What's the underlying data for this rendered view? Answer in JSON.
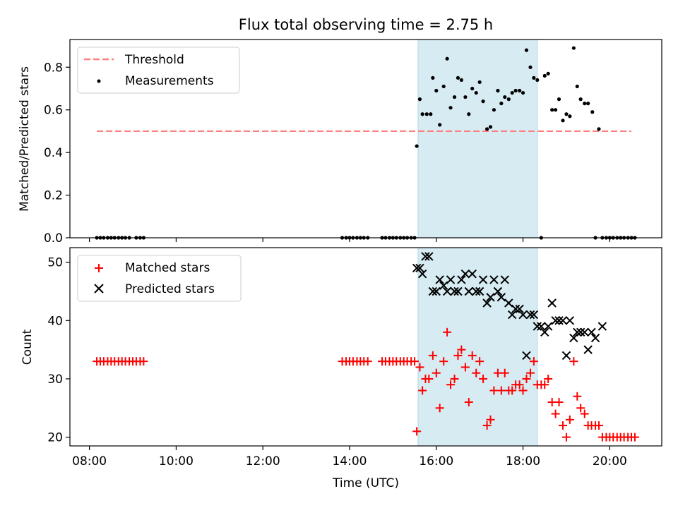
{
  "figure": {
    "title": "Flux total observing time = 2.75 h",
    "xlabel": "Time (UTC)"
  },
  "colors": {
    "span_fill": "#add8e6",
    "threshold": "#ff7f7f",
    "measurements": "#000000",
    "matched": "#ff0000",
    "predicted": "#000000"
  },
  "chart_data": [
    {
      "type": "scatter",
      "panel": "top",
      "ylabel": "Matched/Predicted stars",
      "ylim": [
        0,
        0.93
      ],
      "yticks": [
        0.0,
        0.2,
        0.4,
        0.6,
        0.8
      ],
      "ytick_labels": [
        "0.0",
        "0.2",
        "0.4",
        "0.6",
        "0.8"
      ],
      "x_unit": "hours (UTC)",
      "xlim": [
        7.55,
        21.2
      ],
      "xticks": [
        8,
        10,
        12,
        14,
        16,
        18,
        20
      ],
      "xtick_labels": [
        "08:00",
        "10:00",
        "12:00",
        "14:00",
        "16:00",
        "18:00",
        "20:00"
      ],
      "shaded_span": [
        15.58,
        18.33
      ],
      "grid": false,
      "legend_position": "top-left",
      "legend": [
        "Threshold",
        "Measurements"
      ],
      "threshold": {
        "name": "Threshold",
        "y": 0.5,
        "x_range": [
          8.17,
          20.5
        ],
        "style": "dashed"
      },
      "series": [
        {
          "name": "Measurements",
          "marker": "dot",
          "points": [
            [
              8.17,
              0
            ],
            [
              8.25,
              0
            ],
            [
              8.33,
              0
            ],
            [
              8.42,
              0
            ],
            [
              8.5,
              0
            ],
            [
              8.58,
              0
            ],
            [
              8.67,
              0
            ],
            [
              8.75,
              0
            ],
            [
              8.83,
              0
            ],
            [
              8.92,
              0
            ],
            [
              9.08,
              0
            ],
            [
              9.17,
              0
            ],
            [
              9.25,
              0
            ],
            [
              13.83,
              0
            ],
            [
              13.92,
              0
            ],
            [
              14.0,
              0
            ],
            [
              14.08,
              0
            ],
            [
              14.17,
              0
            ],
            [
              14.25,
              0
            ],
            [
              14.33,
              0
            ],
            [
              14.42,
              0
            ],
            [
              14.75,
              0
            ],
            [
              14.83,
              0
            ],
            [
              14.92,
              0
            ],
            [
              15.0,
              0
            ],
            [
              15.08,
              0
            ],
            [
              15.17,
              0
            ],
            [
              15.25,
              0
            ],
            [
              15.33,
              0
            ],
            [
              15.42,
              0
            ],
            [
              15.5,
              0
            ],
            [
              15.55,
              0.43
            ],
            [
              15.62,
              0.65
            ],
            [
              15.68,
              0.58
            ],
            [
              15.78,
              0.58
            ],
            [
              15.87,
              0.58
            ],
            [
              15.92,
              0.75
            ],
            [
              16.0,
              0.69
            ],
            [
              16.08,
              0.53
            ],
            [
              16.17,
              0.71
            ],
            [
              16.25,
              0.84
            ],
            [
              16.33,
              0.61
            ],
            [
              16.42,
              0.66
            ],
            [
              16.5,
              0.75
            ],
            [
              16.58,
              0.74
            ],
            [
              16.67,
              0.66
            ],
            [
              16.75,
              0.58
            ],
            [
              16.83,
              0.7
            ],
            [
              16.92,
              0.68
            ],
            [
              17.0,
              0.73
            ],
            [
              17.08,
              0.64
            ],
            [
              17.17,
              0.51
            ],
            [
              17.25,
              0.52
            ],
            [
              17.33,
              0.6
            ],
            [
              17.42,
              0.69
            ],
            [
              17.5,
              0.63
            ],
            [
              17.58,
              0.66
            ],
            [
              17.67,
              0.65
            ],
            [
              17.75,
              0.68
            ],
            [
              17.83,
              0.69
            ],
            [
              17.92,
              0.69
            ],
            [
              18.0,
              0.68
            ],
            [
              18.08,
              0.88
            ],
            [
              18.17,
              0.8
            ],
            [
              18.25,
              0.75
            ],
            [
              18.33,
              0.74
            ],
            [
              18.42,
              0
            ],
            [
              18.5,
              0.76
            ],
            [
              18.58,
              0.77
            ],
            [
              18.67,
              0.6
            ],
            [
              18.75,
              0.6
            ],
            [
              18.83,
              0.65
            ],
            [
              18.92,
              0.55
            ],
            [
              19.0,
              0.58
            ],
            [
              19.08,
              0.57
            ],
            [
              19.17,
              0.89
            ],
            [
              19.25,
              0.71
            ],
            [
              19.33,
              0.65
            ],
            [
              19.42,
              0.63
            ],
            [
              19.5,
              0.63
            ],
            [
              19.6,
              0.59
            ],
            [
              19.67,
              0
            ],
            [
              19.75,
              0.51
            ],
            [
              19.83,
              0
            ],
            [
              19.92,
              0
            ],
            [
              20.0,
              0
            ],
            [
              20.08,
              0
            ],
            [
              20.17,
              0
            ],
            [
              20.25,
              0
            ],
            [
              20.33,
              0
            ],
            [
              20.42,
              0
            ],
            [
              20.5,
              0
            ],
            [
              20.58,
              0
            ]
          ]
        }
      ]
    },
    {
      "type": "scatter",
      "panel": "bottom",
      "ylabel": "Count",
      "ylim": [
        18.5,
        52.5
      ],
      "yticks": [
        20,
        30,
        40,
        50
      ],
      "ytick_labels": [
        "20",
        "30",
        "40",
        "50"
      ],
      "x_unit": "hours (UTC)",
      "xlim": [
        7.55,
        21.2
      ],
      "xticks": [
        8,
        10,
        12,
        14,
        16,
        18,
        20
      ],
      "xtick_labels": [
        "08:00",
        "10:00",
        "12:00",
        "14:00",
        "16:00",
        "18:00",
        "20:00"
      ],
      "shaded_span": [
        15.58,
        18.33
      ],
      "grid": false,
      "legend_position": "top-left",
      "legend": [
        "Matched stars",
        "Predicted stars"
      ],
      "series": [
        {
          "name": "Matched stars",
          "marker": "plus",
          "points": [
            [
              8.17,
              33
            ],
            [
              8.25,
              33
            ],
            [
              8.33,
              33
            ],
            [
              8.42,
              33
            ],
            [
              8.5,
              33
            ],
            [
              8.58,
              33
            ],
            [
              8.67,
              33
            ],
            [
              8.75,
              33
            ],
            [
              8.83,
              33
            ],
            [
              8.92,
              33
            ],
            [
              9.0,
              33
            ],
            [
              9.08,
              33
            ],
            [
              9.17,
              33
            ],
            [
              9.25,
              33
            ],
            [
              13.83,
              33
            ],
            [
              13.92,
              33
            ],
            [
              14.0,
              33
            ],
            [
              14.08,
              33
            ],
            [
              14.17,
              33
            ],
            [
              14.25,
              33
            ],
            [
              14.33,
              33
            ],
            [
              14.42,
              33
            ],
            [
              14.75,
              33
            ],
            [
              14.83,
              33
            ],
            [
              14.92,
              33
            ],
            [
              15.0,
              33
            ],
            [
              15.08,
              33
            ],
            [
              15.17,
              33
            ],
            [
              15.25,
              33
            ],
            [
              15.33,
              33
            ],
            [
              15.42,
              33
            ],
            [
              15.5,
              33
            ],
            [
              15.55,
              21
            ],
            [
              15.62,
              32
            ],
            [
              15.68,
              28
            ],
            [
              15.75,
              30
            ],
            [
              15.83,
              30
            ],
            [
              15.92,
              34
            ],
            [
              16.0,
              31
            ],
            [
              16.08,
              25
            ],
            [
              16.17,
              33
            ],
            [
              16.25,
              38
            ],
            [
              16.33,
              29
            ],
            [
              16.42,
              30
            ],
            [
              16.5,
              34
            ],
            [
              16.58,
              35
            ],
            [
              16.67,
              32
            ],
            [
              16.75,
              26
            ],
            [
              16.83,
              34
            ],
            [
              16.92,
              31
            ],
            [
              17.0,
              33
            ],
            [
              17.08,
              30
            ],
            [
              17.17,
              22
            ],
            [
              17.25,
              23
            ],
            [
              17.33,
              28
            ],
            [
              17.42,
              31
            ],
            [
              17.5,
              28
            ],
            [
              17.58,
              31
            ],
            [
              17.67,
              28
            ],
            [
              17.75,
              28
            ],
            [
              17.83,
              29
            ],
            [
              17.92,
              29
            ],
            [
              18.0,
              28
            ],
            [
              18.08,
              30
            ],
            [
              18.17,
              31
            ],
            [
              18.25,
              33
            ],
            [
              18.33,
              29
            ],
            [
              18.42,
              29
            ],
            [
              18.5,
              29
            ],
            [
              18.58,
              30
            ],
            [
              18.67,
              26
            ],
            [
              18.75,
              24
            ],
            [
              18.83,
              26
            ],
            [
              18.92,
              22
            ],
            [
              19.0,
              20
            ],
            [
              19.08,
              23
            ],
            [
              19.17,
              33
            ],
            [
              19.25,
              27
            ],
            [
              19.33,
              25
            ],
            [
              19.42,
              24
            ],
            [
              19.5,
              22
            ],
            [
              19.58,
              22
            ],
            [
              19.67,
              22
            ],
            [
              19.75,
              22
            ],
            [
              19.83,
              20
            ],
            [
              19.92,
              20
            ],
            [
              20.0,
              20
            ],
            [
              20.08,
              20
            ],
            [
              20.17,
              20
            ],
            [
              20.25,
              20
            ],
            [
              20.33,
              20
            ],
            [
              20.42,
              20
            ],
            [
              20.5,
              20
            ],
            [
              20.58,
              20
            ]
          ]
        },
        {
          "name": "Predicted stars",
          "marker": "x",
          "points": [
            [
              15.55,
              49
            ],
            [
              15.62,
              49
            ],
            [
              15.68,
              48
            ],
            [
              15.75,
              51
            ],
            [
              15.83,
              51
            ],
            [
              15.92,
              45
            ],
            [
              16.0,
              45
            ],
            [
              16.08,
              47
            ],
            [
              16.17,
              46
            ],
            [
              16.25,
              45
            ],
            [
              16.33,
              47
            ],
            [
              16.42,
              45
            ],
            [
              16.5,
              45
            ],
            [
              16.58,
              47
            ],
            [
              16.67,
              48
            ],
            [
              16.75,
              45
            ],
            [
              16.83,
              48
            ],
            [
              16.92,
              45
            ],
            [
              17.0,
              45
            ],
            [
              17.08,
              47
            ],
            [
              17.17,
              43
            ],
            [
              17.25,
              44
            ],
            [
              17.33,
              47
            ],
            [
              17.42,
              45
            ],
            [
              17.5,
              44
            ],
            [
              17.58,
              47
            ],
            [
              17.67,
              43
            ],
            [
              17.75,
              41
            ],
            [
              17.83,
              42
            ],
            [
              17.92,
              42
            ],
            [
              18.0,
              41
            ],
            [
              18.08,
              34
            ],
            [
              18.17,
              41
            ],
            [
              18.25,
              41
            ],
            [
              18.33,
              39
            ],
            [
              18.42,
              39
            ],
            [
              18.5,
              38
            ],
            [
              18.58,
              39
            ],
            [
              18.67,
              43
            ],
            [
              18.75,
              40
            ],
            [
              18.83,
              40
            ],
            [
              18.92,
              40
            ],
            [
              19.0,
              34
            ],
            [
              19.08,
              40
            ],
            [
              19.17,
              37
            ],
            [
              19.25,
              38
            ],
            [
              19.33,
              38
            ],
            [
              19.42,
              38
            ],
            [
              19.5,
              35
            ],
            [
              19.58,
              38
            ],
            [
              19.67,
              37
            ],
            [
              19.83,
              39
            ]
          ]
        }
      ]
    }
  ]
}
